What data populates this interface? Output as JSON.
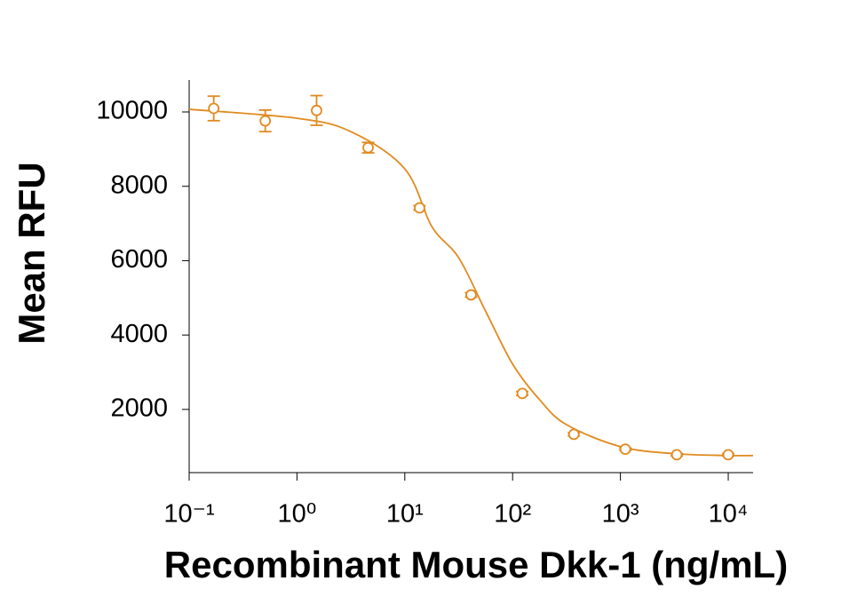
{
  "chart_data": {
    "type": "scatter",
    "x_label": "Recombinant Mouse Dkk-1 (ng/mL)",
    "y_label": "Mean RFU",
    "x_scale": "log",
    "xlim": [
      0.1,
      17000
    ],
    "ylim": [
      300,
      10860
    ],
    "xticks": [
      {
        "value": 0.1,
        "label": "10⁻¹"
      },
      {
        "value": 1,
        "label": "10⁰"
      },
      {
        "value": 10,
        "label": "10¹"
      },
      {
        "value": 100,
        "label": "10²"
      },
      {
        "value": 1000,
        "label": "10³"
      },
      {
        "value": 10000,
        "label": "10⁴"
      }
    ],
    "yticks": [
      2000,
      4000,
      6000,
      8000,
      10000
    ],
    "grid": false,
    "series": [
      {
        "color": "#e08a1e",
        "x": [
          0.169,
          0.508,
          1.52,
          4.57,
          13.7,
          41.2,
          123,
          370,
          1111,
          3333,
          10000
        ],
        "values": [
          10095,
          9760,
          10040,
          9040,
          7420,
          5080,
          2430,
          1330,
          930,
          780,
          780
        ],
        "errors": [
          330,
          290,
          400,
          140,
          60,
          60,
          50,
          40,
          30,
          30,
          30
        ]
      }
    ],
    "fit": {
      "color": "#e08a1e",
      "x": [
        0.1,
        1,
        3.16,
        10,
        17.8,
        31.6,
        56,
        100,
        178,
        316,
        1000,
        3160,
        10000,
        17000
      ],
      "values": [
        10070,
        9830,
        9470,
        8470,
        6920,
        6080,
        4650,
        3220,
        2260,
        1590,
        1000,
        810,
        760,
        760
      ]
    }
  }
}
